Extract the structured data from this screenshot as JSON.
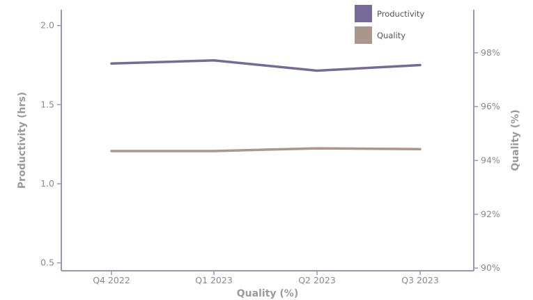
{
  "chart_data": {
    "type": "line",
    "categories": [
      "Q4 2022",
      "Q1 2023",
      "Q2 2023",
      "Q3 2023"
    ],
    "series": [
      {
        "name": "Productivity",
        "axis": "left",
        "color": "#766a99",
        "values": [
          1.76,
          1.78,
          1.715,
          1.75
        ]
      },
      {
        "name": "Quality",
        "axis": "right",
        "color": "#ab968c",
        "values": [
          94.35,
          94.35,
          94.45,
          94.42
        ]
      }
    ],
    "xlabel": "Quality (%)",
    "ylabel_left": "Productivity (hrs)",
    "ylabel_right": "Quality (%)",
    "ylim_left": [
      0.45,
      2.1
    ],
    "yticks_left": [
      "0.5",
      "1.0",
      "1.5",
      "2.0"
    ],
    "ylim_right": [
      89.9,
      99.6
    ],
    "yticks_right": [
      "90%",
      "92%",
      "94%",
      "96%",
      "98%"
    ],
    "legend": {
      "position": "top-right"
    },
    "axis_color": "#8e9ab8",
    "grid": false
  }
}
